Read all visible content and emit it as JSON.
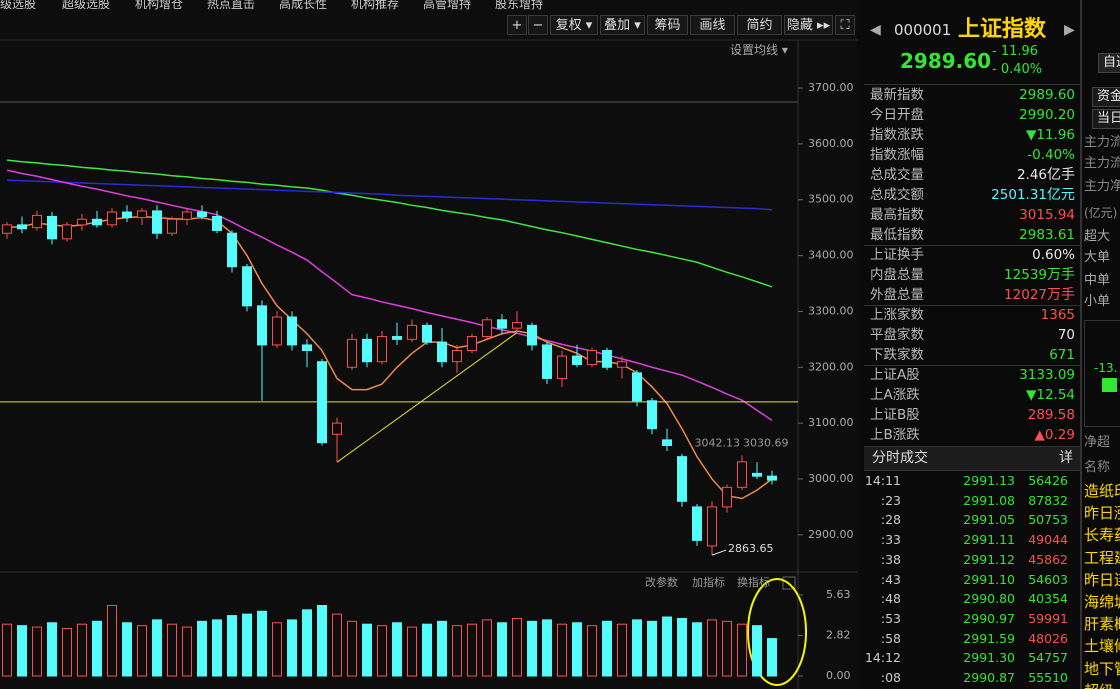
{
  "menu": [
    "级选股",
    "超级选股",
    "机构增仓",
    "热点直击",
    "高成长性",
    "机构推荐",
    "高管增持",
    "股东增持"
  ],
  "toolbar": [
    "+",
    "−",
    "复权 ▾",
    "叠加 ▾",
    "筹码",
    "画线",
    "简约",
    "隐藏 ▸▸"
  ],
  "chart_data": {
    "type": "candlestick",
    "ma_menu": "设置均线 ▾",
    "up_color": "#ff4d4d",
    "down_color": "#54fcfc",
    "open": [
      3440,
      3455,
      3450,
      3470,
      3430,
      3455,
      3465,
      3455,
      3478,
      3468,
      3480,
      3440,
      3465,
      3478,
      3470,
      3440,
      3380,
      3310,
      3240,
      3290,
      3240,
      3210,
      3080,
      3200,
      3250,
      3210,
      3255,
      3250,
      3275,
      3245,
      3210,
      3230,
      3255,
      3285,
      3270,
      3275,
      3240,
      3180,
      3220,
      3205,
      3230,
      3200,
      3190,
      3140,
      3070,
      3040,
      2950,
      2880,
      2950,
      2985,
      3010,
      3005
    ],
    "high": [
      3460,
      3470,
      3480,
      3478,
      3460,
      3475,
      3480,
      3485,
      3490,
      3485,
      3490,
      3470,
      3485,
      3490,
      3480,
      3445,
      3385,
      3320,
      3300,
      3300,
      3250,
      3215,
      3110,
      3260,
      3260,
      3265,
      3280,
      3285,
      3280,
      3270,
      3240,
      3260,
      3290,
      3295,
      3300,
      3280,
      3245,
      3230,
      3240,
      3235,
      3235,
      3220,
      3195,
      3145,
      3090,
      3045,
      2955,
      2960,
      2990,
      3042.13,
      3030,
      3015
    ],
    "low": [
      3430,
      3440,
      3445,
      3420,
      3425,
      3445,
      3450,
      3450,
      3460,
      3455,
      3430,
      3435,
      3455,
      3465,
      3440,
      3370,
      3300,
      3140,
      3235,
      3230,
      3200,
      3060,
      3030,
      3195,
      3200,
      3205,
      3240,
      3245,
      3240,
      3200,
      3190,
      3225,
      3250,
      3260,
      3265,
      3230,
      3170,
      3165,
      3200,
      3200,
      3195,
      3180,
      3130,
      3080,
      3050,
      2950,
      2880,
      2863.65,
      2940,
      2980,
      3000,
      2990
    ],
    "close": [
      3455,
      3448,
      3472,
      3430,
      3455,
      3465,
      3455,
      3478,
      3468,
      3480,
      3440,
      3465,
      3478,
      3470,
      3445,
      3380,
      3310,
      3240,
      3290,
      3240,
      3230,
      3065,
      3100,
      3250,
      3210,
      3255,
      3250,
      3275,
      3245,
      3210,
      3230,
      3255,
      3285,
      3270,
      3280,
      3240,
      3180,
      3220,
      3205,
      3230,
      3200,
      3210,
      3140,
      3090,
      3060,
      2960,
      2890,
      2950,
      2985,
      3030.69,
      3005,
      2998
    ],
    "ma_series": [
      {
        "color": "#3ee83e",
        "values": [
          3571,
          3568,
          3566,
          3563,
          3561,
          3558,
          3556,
          3553,
          3551,
          3548,
          3546,
          3543,
          3541,
          3538,
          3536,
          3533,
          3531,
          3528,
          3526,
          3523,
          3521,
          3517,
          3512,
          3508,
          3503,
          3499,
          3495,
          3490,
          3486,
          3481,
          3477,
          3473,
          3468,
          3464,
          3458,
          3452,
          3446,
          3441,
          3435,
          3429,
          3423,
          3417,
          3411,
          3406,
          3400,
          3394,
          3388,
          3379,
          3370,
          3362,
          3353,
          3344
        ]
      },
      {
        "color": "#2a2ad8",
        "values": [
          3535,
          3534,
          3533,
          3532,
          3531,
          3530,
          3529,
          3528,
          3527,
          3526,
          3525,
          3524,
          3523,
          3522,
          3521,
          3520,
          3519,
          3518,
          3517,
          3516,
          3515,
          3514,
          3513,
          3512,
          3511,
          3510,
          3508,
          3507,
          3506,
          3505,
          3504,
          3503,
          3502,
          3501,
          3500,
          3499,
          3498,
          3497,
          3496,
          3495,
          3494,
          3493,
          3492,
          3491,
          3490,
          3489,
          3488,
          3487,
          3486,
          3485,
          3484,
          3482
        ]
      },
      {
        "color": "#e03ee0",
        "values": [
          3553,
          3547,
          3542,
          3536,
          3530,
          3524,
          3519,
          3513,
          3507,
          3502,
          3496,
          3490,
          3484,
          3479,
          3473,
          3460,
          3446,
          3433,
          3419,
          3406,
          3392,
          3371,
          3351,
          3330,
          3324,
          3317,
          3311,
          3305,
          3298,
          3292,
          3286,
          3280,
          3273,
          3267,
          3261,
          3254,
          3248,
          3241,
          3235,
          3229,
          3222,
          3215,
          3208,
          3200,
          3193,
          3186,
          3175,
          3164,
          3152,
          3141,
          3123,
          3105
        ]
      },
      {
        "color": "#f08a4b",
        "values": [
          3450,
          3452,
          3458,
          3455,
          3452,
          3455,
          3460,
          3465,
          3468,
          3470,
          3468,
          3466,
          3465,
          3468,
          3462,
          3440,
          3400,
          3350,
          3310,
          3285,
          3260,
          3230,
          3180,
          3160,
          3160,
          3170,
          3200,
          3225,
          3245,
          3245,
          3235,
          3240,
          3250,
          3260,
          3265,
          3260,
          3245,
          3235,
          3225,
          3210,
          3210,
          3205,
          3190,
          3165,
          3135,
          3090,
          3040,
          3000,
          2970,
          2965,
          2980,
          3000
        ]
      }
    ],
    "ylim": [
      2837,
      3786
    ],
    "yticks": [
      {
        "value": 2900,
        "label": "2900.00"
      },
      {
        "value": 3000,
        "label": "3000.00"
      },
      {
        "value": 3100,
        "label": "3100.00"
      },
      {
        "value": 3200,
        "label": "3200.00"
      },
      {
        "value": 3300,
        "label": "3300.00"
      },
      {
        "value": 3400,
        "label": "3400.00"
      },
      {
        "value": 3500,
        "label": "3500.00"
      },
      {
        "value": 3600,
        "label": "3600.00"
      },
      {
        "value": 3700,
        "label": "3700.00"
      }
    ],
    "hline": {
      "value": 3138,
      "color": "#e6e62e"
    },
    "trendline": {
      "x": [
        22,
        34
      ],
      "y": [
        3030,
        3262
      ],
      "color": "#e6e62e"
    },
    "annotations": [
      {
        "value": 3042.13,
        "label": "3042.13"
      },
      {
        "value": 3030.69,
        "label": "3030.69"
      },
      {
        "value": 2863.65,
        "label": "2863.65"
      }
    ],
    "volume": {
      "values": [
        3.6,
        3.5,
        3.4,
        3.7,
        3.3,
        3.6,
        3.8,
        4.9,
        3.7,
        3.5,
        3.9,
        3.6,
        3.4,
        3.8,
        3.9,
        4.2,
        4.3,
        4.5,
        3.7,
        3.9,
        4.6,
        4.9,
        4.3,
        3.8,
        3.6,
        3.5,
        3.7,
        3.4,
        3.6,
        3.8,
        3.5,
        3.6,
        3.9,
        3.7,
        4.0,
        3.8,
        3.9,
        3.6,
        3.7,
        3.5,
        3.8,
        3.6,
        3.9,
        3.8,
        4.1,
        4.0,
        3.7,
        3.9,
        3.8,
        3.6,
        3.5,
        2.6
      ],
      "ylim": [
        0,
        5.63
      ],
      "yticks": [
        {
          "value": 0,
          "label": "0.00"
        },
        {
          "value": 2.82,
          "label": "2.82"
        },
        {
          "value": 5.63,
          "label": "5.63"
        }
      ],
      "menu": [
        "改参数",
        "加指标",
        "换指标"
      ]
    }
  },
  "quote": {
    "prev": "◀",
    "next": "▶",
    "code": "000001",
    "name": "上证指数",
    "price": "2989.60",
    "change": "- 11.96",
    "change_pct": "- 0.40%",
    "rows": [
      {
        "label": "最新指数",
        "value": "2989.60",
        "color": "#33e633"
      },
      {
        "label": "今日开盘",
        "value": "2990.20",
        "color": "#33e633"
      },
      {
        "label": "指数涨跌",
        "value": "▼11.96",
        "color": "#33e633"
      },
      {
        "label": "指数涨幅",
        "value": "-0.40%",
        "color": "#33e633"
      },
      {
        "label": "总成交量",
        "value": "2.46",
        "unit": "亿手",
        "color": "#e8e8e8"
      },
      {
        "label": "总成交额",
        "value": "2501.31",
        "unit": "亿元",
        "color": "#4dfcff"
      },
      {
        "label": "最高指数",
        "value": "3015.94",
        "color": "#ff4f4f"
      },
      {
        "label": "最低指数",
        "value": "2983.61",
        "color": "#33e633"
      },
      {
        "label": "上证换手",
        "value": "0.60%",
        "color": "#e8e8e8"
      },
      {
        "label": "内盘总量",
        "value": "12539",
        "unit": "万手",
        "color": "#33e633"
      },
      {
        "label": "外盘总量",
        "value": "12027",
        "unit": "万手",
        "color": "#ff4f4f"
      },
      {
        "label": "上涨家数",
        "value": "1365",
        "color": "#ff4f4f"
      },
      {
        "label": "平盘家数",
        "value": "70",
        "color": "#e8e8e8"
      },
      {
        "label": "下跌家数",
        "value": "671",
        "color": "#33e633"
      },
      {
        "label": "上证A股",
        "value": "3133.09",
        "color": "#33e633"
      },
      {
        "label": "上A涨跌",
        "value": "▼12.54",
        "color": "#33e633"
      },
      {
        "label": "上证B股",
        "value": "289.58",
        "color": "#ff4f4f"
      },
      {
        "label": "上B涨跌",
        "value": "▲0.29",
        "color": "#ff4f4f"
      }
    ]
  },
  "ticks": {
    "title": "分时成交",
    "detail": "详",
    "rows": [
      {
        "time": "14:11",
        "price": "2991.13",
        "volume": "56426",
        "color": "#33e633"
      },
      {
        "time": ":23",
        "price": "2991.08",
        "volume": "87832",
        "color": "#33e633"
      },
      {
        "time": ":28",
        "price": "2991.05",
        "volume": "50753",
        "color": "#33e633"
      },
      {
        "time": ":33",
        "price": "2991.11",
        "volume": "49044",
        "color": "#ff4f4f"
      },
      {
        "time": ":38",
        "price": "2991.12",
        "volume": "45862",
        "color": "#ff4f4f"
      },
      {
        "time": ":43",
        "price": "2991.10",
        "volume": "54603",
        "color": "#33e633"
      },
      {
        "time": ":48",
        "price": "2990.80",
        "volume": "40354",
        "color": "#33e633"
      },
      {
        "time": ":53",
        "price": "2990.97",
        "volume": "59991",
        "color": "#ff4f4f"
      },
      {
        "time": ":58",
        "price": "2991.59",
        "volume": "48026",
        "color": "#ff4f4f"
      },
      {
        "time": "14:12",
        "price": "2991.30",
        "volume": "54757",
        "color": "#33e633"
      },
      {
        "time": ":08",
        "price": "2990.87",
        "volume": "55510",
        "color": "#33e633"
      }
    ]
  },
  "side": {
    "tabs": [
      "自选",
      "资金",
      "当日"
    ],
    "flow_labels": [
      "主力流",
      "主力流",
      "主力净"
    ],
    "unit": "(亿元)",
    "sizes": [
      "超大",
      "大单",
      "中单",
      "小单"
    ],
    "net_value": "-13.",
    "net_label": "净超",
    "list_header": "名称",
    "list": [
      "造纸印",
      "昨日涨",
      "长寿药",
      "工程建",
      "昨日连",
      "海绵城",
      "肝素概",
      "土壤修",
      "地下管",
      "超级"
    ]
  }
}
